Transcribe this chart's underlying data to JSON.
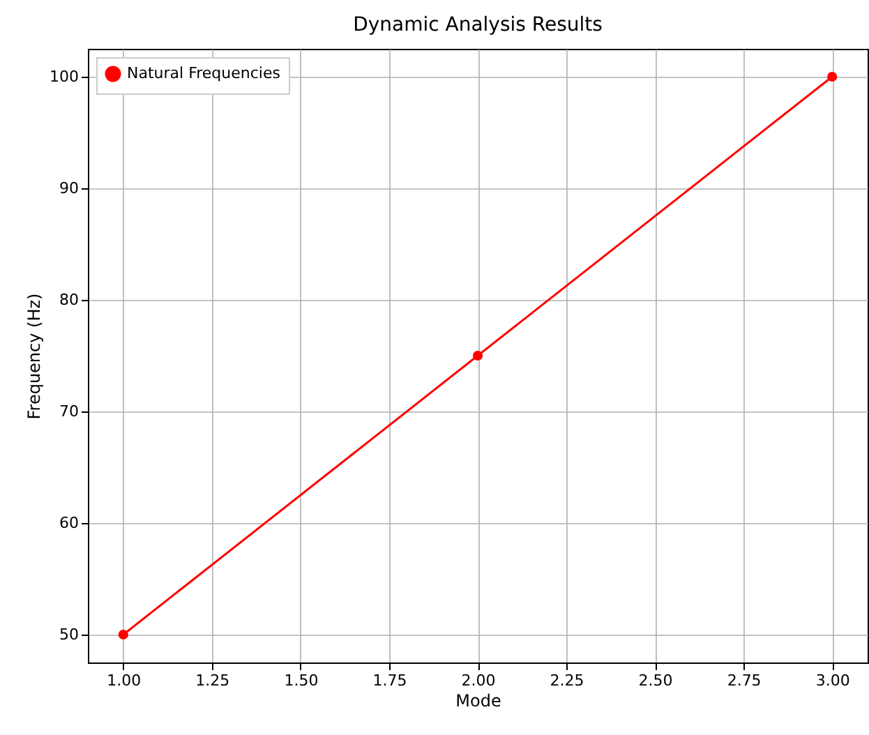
{
  "chart_data": {
    "type": "line",
    "title": "Dynamic Analysis Results",
    "xlabel": "Mode",
    "ylabel": "Frequency (Hz)",
    "x": [
      1,
      2,
      3
    ],
    "series": [
      {
        "name": "Natural Frequencies",
        "color": "#ff0000",
        "values": [
          50,
          75,
          100
        ]
      }
    ],
    "xlim": [
      0.9,
      3.1
    ],
    "xticks": [
      {
        "value": 1,
        "label": "1.00"
      },
      {
        "value": 1.25,
        "label": "1.25"
      },
      {
        "value": 1.5,
        "label": "1.50"
      },
      {
        "value": 1.75,
        "label": "1.75"
      },
      {
        "value": 2,
        "label": "2.00"
      },
      {
        "value": 2.25,
        "label": "2.25"
      },
      {
        "value": 2.5,
        "label": "2.50"
      },
      {
        "value": 2.75,
        "label": "2.75"
      },
      {
        "value": 3,
        "label": "3.00"
      }
    ],
    "ylim": [
      47.5,
      102.5
    ],
    "yticks": [
      50,
      60,
      70,
      80,
      90,
      100
    ],
    "grid": true,
    "legend": "top left",
    "marker": "circle",
    "line_style": "solid"
  }
}
